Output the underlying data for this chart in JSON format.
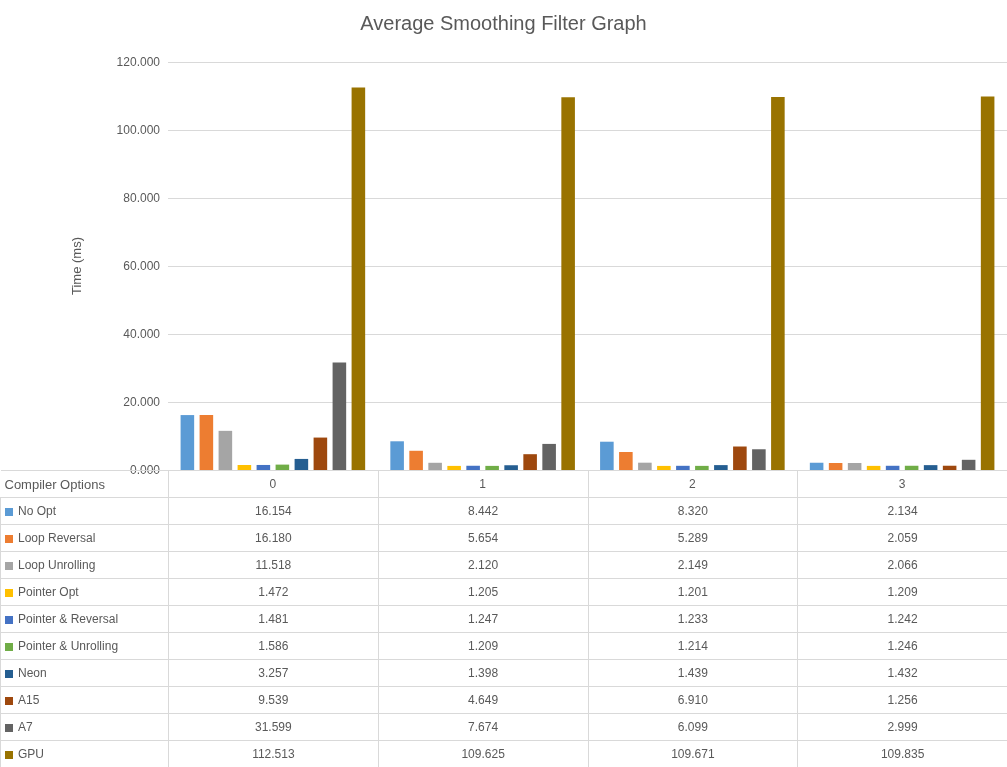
{
  "chart_data": {
    "type": "bar",
    "title": "Average Smoothing Filter Graph",
    "ylabel": "Time (ms)",
    "legend_title": "Compiler Options",
    "categories": [
      "0",
      "1",
      "2",
      "3"
    ],
    "ylim": [
      0,
      120
    ],
    "yticks": [
      {
        "value": 0,
        "label": "0.000"
      },
      {
        "value": 20,
        "label": "20.000"
      },
      {
        "value": 40,
        "label": "40.000"
      },
      {
        "value": 60,
        "label": "60.000"
      },
      {
        "value": 80,
        "label": "80.000"
      },
      {
        "value": 100,
        "label": "100.000"
      },
      {
        "value": 120,
        "label": "120.000"
      }
    ],
    "grid": "y",
    "legend": "bottom",
    "series": [
      {
        "name": "No Opt",
        "color": "#5b9bd5",
        "values": [
          16.154,
          8.442,
          8.32,
          2.134
        ],
        "value_labels": [
          "16.154",
          "8.442",
          "8.320",
          "2.134"
        ]
      },
      {
        "name": "Loop Reversal",
        "color": "#ed7d31",
        "values": [
          16.18,
          5.654,
          5.289,
          2.059
        ],
        "value_labels": [
          "16.180",
          "5.654",
          "5.289",
          "2.059"
        ]
      },
      {
        "name": "Loop Unrolling",
        "color": "#a5a5a5",
        "values": [
          11.518,
          2.12,
          2.149,
          2.066
        ],
        "value_labels": [
          "11.518",
          "2.120",
          "2.149",
          "2.066"
        ]
      },
      {
        "name": "Pointer Opt",
        "color": "#ffc000",
        "values": [
          1.472,
          1.205,
          1.201,
          1.209
        ],
        "value_labels": [
          "1.472",
          "1.205",
          "1.201",
          "1.209"
        ]
      },
      {
        "name": "Pointer & Reversal",
        "color": "#4472c4",
        "values": [
          1.481,
          1.247,
          1.233,
          1.242
        ],
        "value_labels": [
          "1.481",
          "1.247",
          "1.233",
          "1.242"
        ]
      },
      {
        "name": "Pointer & Unrolling",
        "color": "#70ad47",
        "values": [
          1.586,
          1.209,
          1.214,
          1.246
        ],
        "value_labels": [
          "1.586",
          "1.209",
          "1.214",
          "1.246"
        ]
      },
      {
        "name": "Neon",
        "color": "#255e91",
        "values": [
          3.257,
          1.398,
          1.439,
          1.432
        ],
        "value_labels": [
          "3.257",
          "1.398",
          "1.439",
          "1.432"
        ]
      },
      {
        "name": "A15",
        "color": "#9e480e",
        "values": [
          9.539,
          4.649,
          6.91,
          1.256
        ],
        "value_labels": [
          "9.539",
          "4.649",
          "6.910",
          "1.256"
        ]
      },
      {
        "name": "A7",
        "color": "#636363",
        "values": [
          31.599,
          7.674,
          6.099,
          2.999
        ],
        "value_labels": [
          "31.599",
          "7.674",
          "6.099",
          "2.999"
        ]
      },
      {
        "name": "GPU",
        "color": "#997300",
        "values": [
          112.513,
          109.625,
          109.671,
          109.835
        ],
        "value_labels": [
          "112.513",
          "109.625",
          "109.671",
          "109.835"
        ]
      }
    ]
  }
}
